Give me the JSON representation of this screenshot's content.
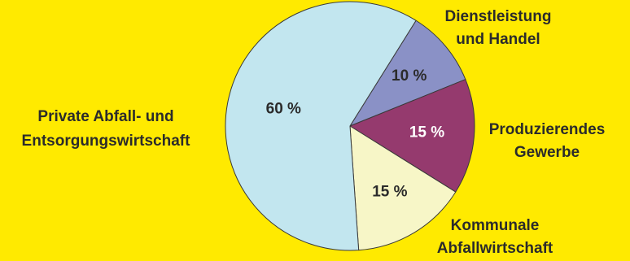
{
  "colors": {
    "background": "#ffea00",
    "outline": "#3a3a3a"
  },
  "chart_data": {
    "type": "pie",
    "title": "",
    "legend": "none",
    "slices": [
      {
        "label": "Dienstleistung und Handel",
        "label_lines": [
          "Dienstleistung",
          "und Handel"
        ],
        "value": 10,
        "value_label": "10 %",
        "color": "#8a91c6",
        "value_text_color": "#2b2b2b"
      },
      {
        "label": "Produzierendes Gewerbe",
        "label_lines": [
          "Produzierendes",
          "Gewerbe"
        ],
        "value": 15,
        "value_label": "15 %",
        "color": "#953a6e",
        "value_text_color": "#ffffff"
      },
      {
        "label": "Kommunale Abfallwirtschaft",
        "label_lines": [
          "Kommunale",
          "Abfallwirtschaft"
        ],
        "value": 15,
        "value_label": "15 %",
        "color": "#f7f6c7",
        "value_text_color": "#2b2b2b"
      },
      {
        "label": "Private Abfall- und Entsorgungswirtschaft",
        "label_lines": [
          "Private Abfall- und",
          "Entsorgungswirtschaft"
        ],
        "value": 60,
        "value_label": "60 %",
        "color": "#c2e6ef",
        "value_text_color": "#2b2b2b"
      }
    ]
  }
}
